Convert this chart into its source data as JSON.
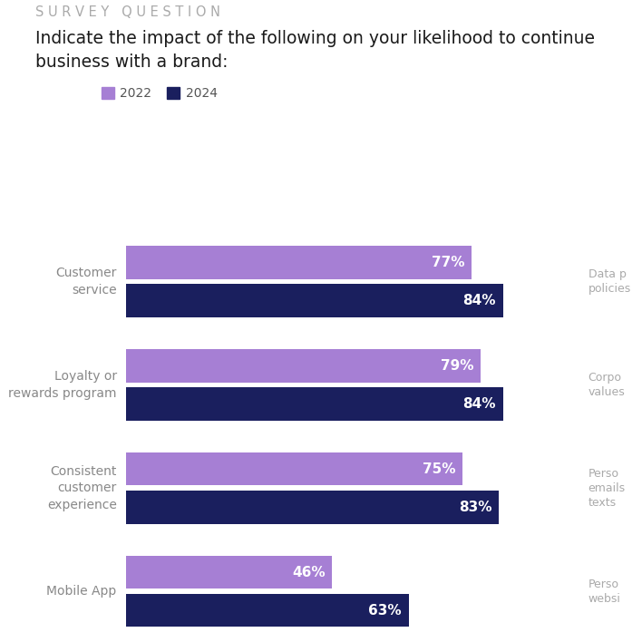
{
  "survey_question_label": "S U R V E Y   Q U E S T I O N",
  "title": "Indicate the impact of the following on your likelihood to continue\nbusiness with a brand:",
  "categories": [
    "Customer\nservice",
    "Loyalty or\nrewards program",
    "Consistent\ncustomer\nexperience",
    "Mobile App"
  ],
  "values_2022": [
    77,
    79,
    75,
    46
  ],
  "values_2024": [
    84,
    84,
    83,
    63
  ],
  "color_2022": "#a67fd4",
  "color_2024": "#1a1f5e",
  "legend_2022": "2022",
  "legend_2024": "2024",
  "bar_height": 0.32,
  "background_color": "#ffffff",
  "survey_q_color": "#aaaaaa",
  "title_color": "#1a1a1a",
  "category_label_color": "#888888",
  "value_label_color": "#ffffff",
  "right_labels": [
    "Data p\npolicies",
    "Corpo\nvalues",
    "Perso\nemails\ntexts",
    "Perso\nwebsi"
  ],
  "right_label_color": "#aaaaaa"
}
